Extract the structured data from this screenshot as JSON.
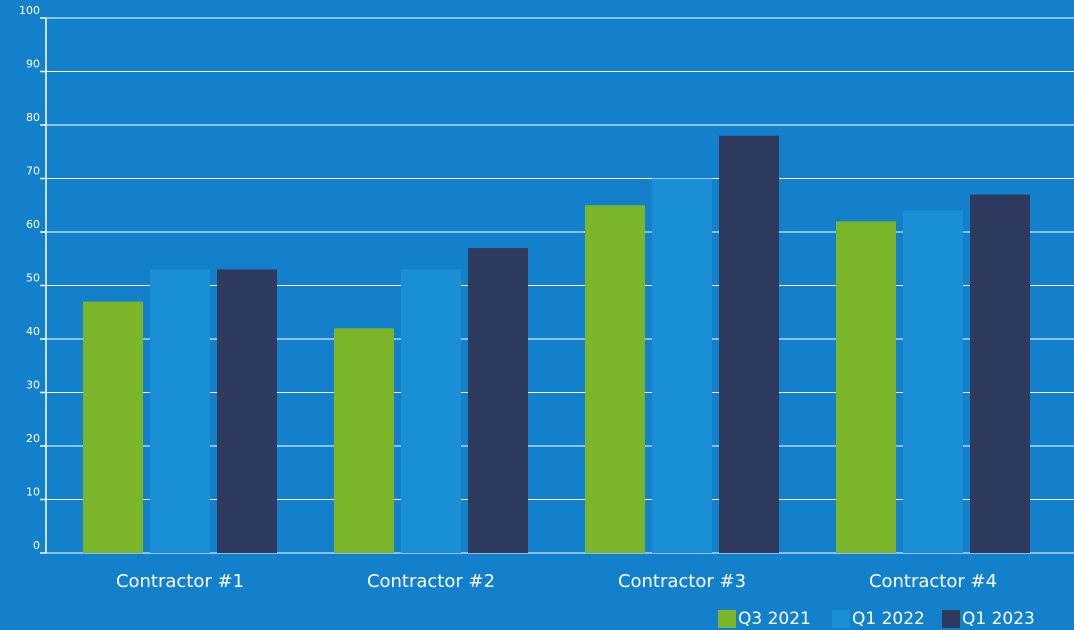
{
  "chart_data": {
    "type": "bar",
    "categories": [
      "Contractor #1",
      "Contractor #2",
      "Contractor #3",
      "Contractor #4"
    ],
    "series": [
      {
        "name": "Q3 2021",
        "color": "#7ab52a",
        "values": [
          47,
          42,
          65,
          62
        ]
      },
      {
        "name": "Q1 2022",
        "color": "#1a8fd6",
        "values": [
          53,
          53,
          70,
          64
        ]
      },
      {
        "name": "Q1 2023",
        "color": "#2e3a5e",
        "values": [
          53,
          57,
          78,
          67
        ]
      }
    ],
    "ylim": [
      0,
      100
    ],
    "yticks": [
      0,
      10,
      20,
      30,
      40,
      50,
      60,
      70,
      80,
      90,
      100
    ],
    "grid": true,
    "legend": "bottom-right"
  }
}
